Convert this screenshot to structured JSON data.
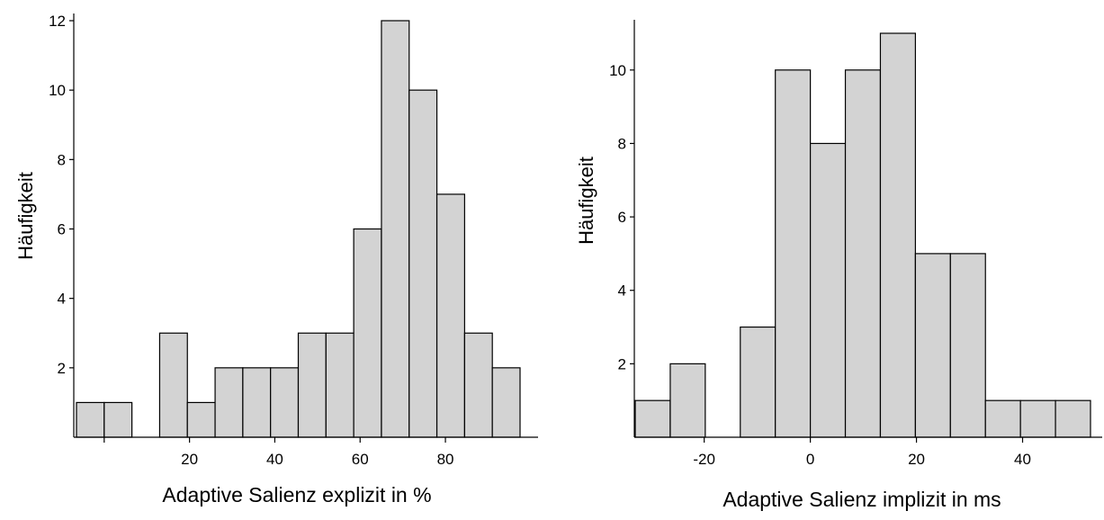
{
  "chart_data": [
    {
      "type": "bar",
      "xlabel": "Adaptive  Salienz explizit  in %",
      "ylabel": "Häufigkeit",
      "bin_width": 6.5,
      "bins": [
        {
          "x0": -6.5,
          "x1": 0,
          "count": 1
        },
        {
          "x0": 0,
          "x1": 6.5,
          "count": 1
        },
        {
          "x0": 6.5,
          "x1": 13,
          "count": 0
        },
        {
          "x0": 13,
          "x1": 19.5,
          "count": 3
        },
        {
          "x0": 19.5,
          "x1": 26,
          "count": 1
        },
        {
          "x0": 26,
          "x1": 32.5,
          "count": 2
        },
        {
          "x0": 32.5,
          "x1": 39,
          "count": 2
        },
        {
          "x0": 39,
          "x1": 45.5,
          "count": 2
        },
        {
          "x0": 45.5,
          "x1": 52,
          "count": 3
        },
        {
          "x0": 52,
          "x1": 58.5,
          "count": 3
        },
        {
          "x0": 58.5,
          "x1": 65,
          "count": 6
        },
        {
          "x0": 65,
          "x1": 71.5,
          "count": 12
        },
        {
          "x0": 71.5,
          "x1": 78,
          "count": 10
        },
        {
          "x0": 78,
          "x1": 84.5,
          "count": 7
        },
        {
          "x0": 84.5,
          "x1": 91,
          "count": 3
        },
        {
          "x0": 91,
          "x1": 97.5,
          "count": 2
        }
      ],
      "xlim": [
        -6.5,
        97.5
      ],
      "ylim": [
        0,
        12
      ],
      "xticks": [
        0,
        20,
        40,
        60,
        80
      ],
      "xtick_labels": [
        "",
        "20",
        "40",
        "60",
        "80"
      ],
      "yticks": [
        2,
        4,
        6,
        8,
        10,
        12
      ],
      "ytick_labels": [
        "2",
        "4",
        "6",
        "8",
        "10",
        "12"
      ],
      "grid": false
    },
    {
      "type": "bar",
      "xlabel": "Adaptive  Salienz  implizit  in ms",
      "ylabel": "Häufigkeit",
      "bin_width": 6.6,
      "bins": [
        {
          "x0": -33,
          "x1": -26.4,
          "count": 1
        },
        {
          "x0": -26.4,
          "x1": -19.8,
          "count": 2
        },
        {
          "x0": -19.8,
          "x1": -13.2,
          "count": 0
        },
        {
          "x0": -13.2,
          "x1": -6.6,
          "count": 3
        },
        {
          "x0": -6.6,
          "x1": 0,
          "count": 10
        },
        {
          "x0": 0,
          "x1": 6.6,
          "count": 8
        },
        {
          "x0": 6.6,
          "x1": 13.2,
          "count": 10
        },
        {
          "x0": 13.2,
          "x1": 19.8,
          "count": 11
        },
        {
          "x0": 19.8,
          "x1": 26.4,
          "count": 5
        },
        {
          "x0": 26.4,
          "x1": 33,
          "count": 5
        },
        {
          "x0": 33,
          "x1": 39.6,
          "count": 1
        },
        {
          "x0": 39.6,
          "x1": 46.2,
          "count": 1
        },
        {
          "x0": 46.2,
          "x1": 52.8,
          "count": 1
        }
      ],
      "xlim": [
        -33,
        52.8
      ],
      "ylim": [
        0,
        11
      ],
      "xticks": [
        -20,
        0,
        20,
        40
      ],
      "xtick_labels": [
        "-20",
        "0",
        "20",
        "40"
      ],
      "yticks": [
        2,
        4,
        6,
        8,
        10
      ],
      "ytick_labels": [
        "2",
        "4",
        "6",
        "8",
        "10"
      ],
      "grid": false
    }
  ]
}
